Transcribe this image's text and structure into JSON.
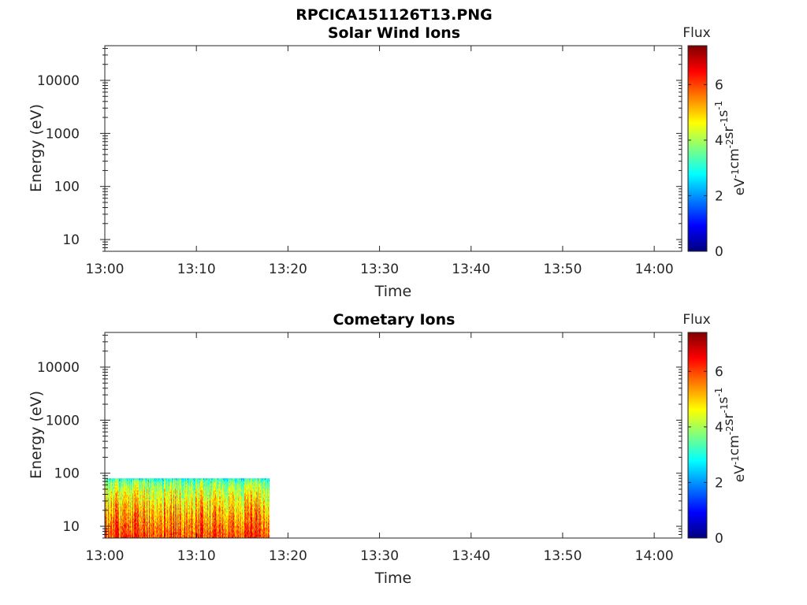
{
  "figure_title": "RPCICA151126T13.PNG",
  "chart_data": [
    {
      "type": "heatmap",
      "title": "Solar Wind Ions",
      "xlabel": "Time",
      "ylabel": "Energy (eV)",
      "x_ticks": [
        "13:00",
        "13:10",
        "13:20",
        "13:30",
        "13:40",
        "13:50",
        "14:00"
      ],
      "x_range": [
        "13:00",
        "14:03"
      ],
      "y_scale": "log",
      "y_ticks": [
        "10",
        "100",
        "1000",
        "10000"
      ],
      "y_range": [
        6,
        45000
      ],
      "colorbar": {
        "title": "Flux",
        "label_base": "eV",
        "label_exps": [
          "-1",
          "-2",
          "-1",
          "-1"
        ],
        "label_units": [
          "cm",
          "sr",
          "s"
        ],
        "ticks": [
          "0",
          "2",
          "4",
          "6"
        ],
        "range": [
          0,
          7.4
        ],
        "colormap": "jet"
      },
      "data_region": null
    },
    {
      "type": "heatmap",
      "title": "Cometary Ions",
      "xlabel": "Time",
      "ylabel": "Energy (eV)",
      "x_ticks": [
        "13:00",
        "13:10",
        "13:20",
        "13:30",
        "13:40",
        "13:50",
        "14:00"
      ],
      "x_range": [
        "13:00",
        "14:03"
      ],
      "y_scale": "log",
      "y_ticks": [
        "10",
        "100",
        "1000",
        "10000"
      ],
      "y_range": [
        6,
        45000
      ],
      "colorbar": {
        "title": "Flux",
        "label_base": "eV",
        "label_exps": [
          "-1",
          "-2",
          "-1",
          "-1"
        ],
        "label_units": [
          "cm",
          "sr",
          "s"
        ],
        "ticks": [
          "0",
          "2",
          "4",
          "6"
        ],
        "range": [
          0,
          7.4
        ],
        "colormap": "jet"
      },
      "data_region": {
        "time_start": "13:00",
        "time_end": "13:18",
        "energy_min": 6,
        "energy_max": 80,
        "flux_low_energy": 6.0,
        "flux_high_energy": 3.0
      }
    }
  ]
}
